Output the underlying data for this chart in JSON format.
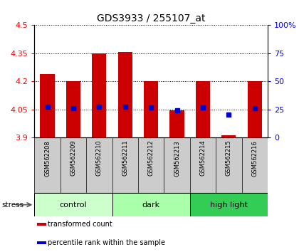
{
  "title": "GDS3933 / 255107_at",
  "samples": [
    "GSM562208",
    "GSM562209",
    "GSM562210",
    "GSM562211",
    "GSM562212",
    "GSM562213",
    "GSM562214",
    "GSM562215",
    "GSM562216"
  ],
  "bar_tops": [
    4.24,
    4.2,
    4.35,
    4.355,
    4.2,
    4.045,
    4.2,
    3.91,
    4.2
  ],
  "bar_bottoms": [
    3.9,
    3.9,
    3.9,
    3.9,
    3.9,
    3.9,
    3.9,
    3.9,
    3.9
  ],
  "percentile_values": [
    4.065,
    4.055,
    4.065,
    4.065,
    4.06,
    4.045,
    4.06,
    4.02,
    4.055
  ],
  "ylim": [
    3.9,
    4.5
  ],
  "yticks_left": [
    3.9,
    4.05,
    4.2,
    4.35,
    4.5
  ],
  "yticks_right": [
    0,
    25,
    50,
    75,
    100
  ],
  "bar_color": "#cc0000",
  "percentile_color": "#0000cc",
  "groups": [
    {
      "label": "control",
      "start": 0,
      "end": 3,
      "color": "#ccffcc"
    },
    {
      "label": "dark",
      "start": 3,
      "end": 6,
      "color": "#aaffaa"
    },
    {
      "label": "high light",
      "start": 6,
      "end": 9,
      "color": "#33cc55"
    }
  ],
  "sample_bg": "#cccccc",
  "stress_label": "stress",
  "legend_items": [
    {
      "color": "#cc0000",
      "label": "transformed count"
    },
    {
      "color": "#0000cc",
      "label": "percentile rank within the sample"
    }
  ]
}
